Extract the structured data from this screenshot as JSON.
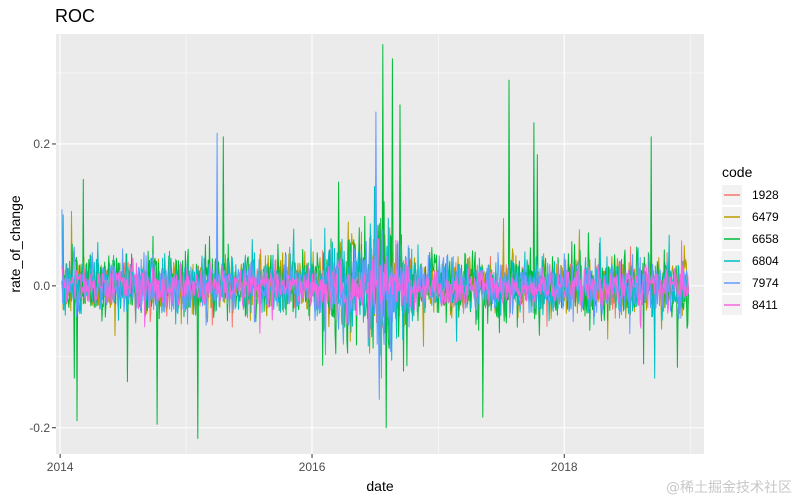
{
  "chart_data": {
    "type": "line",
    "title": "ROC",
    "xlabel": "date",
    "ylabel": "rate_of_change",
    "xlim": [
      "2013-12-20",
      "2019-02-10"
    ],
    "ylim": [
      -0.237,
      0.355
    ],
    "x_ticks": [
      {
        "value": "2014-01-01",
        "label": "2014"
      },
      {
        "value": "2016-01-01",
        "label": "2016"
      },
      {
        "value": "2018-01-01",
        "label": "2018"
      }
    ],
    "x_minor_ticks": [
      "2015-01-01",
      "2017-01-01",
      "2019-01-01"
    ],
    "y_ticks": [
      {
        "value": -0.2,
        "label": "-0.2"
      },
      {
        "value": 0.0,
        "label": "0.0"
      },
      {
        "value": 0.2,
        "label": "0.2"
      }
    ],
    "y_minor_ticks": [
      -0.1,
      0.1,
      0.3
    ],
    "grid": true,
    "legend": {
      "title": "code",
      "position": "right"
    },
    "series": [
      {
        "name": "1928",
        "color": "#F8766D",
        "x_range": [
          "2014-01-06",
          "2018-12-28"
        ],
        "points": [
          {
            "x": "2014-03-10",
            "y": 0.062
          },
          {
            "x": "2015-05-15",
            "y": -0.058
          },
          {
            "x": "2016-06-20",
            "y": 0.071
          },
          {
            "x": "2017-09-05",
            "y": -0.052
          },
          {
            "x": "2018-07-12",
            "y": 0.055
          }
        ]
      },
      {
        "name": "6479",
        "color": "#B79F00",
        "x_range": [
          "2014-01-06",
          "2018-12-28"
        ],
        "points": [
          {
            "x": "2014-02-03",
            "y": 0.105
          },
          {
            "x": "2014-06-10",
            "y": -0.07
          },
          {
            "x": "2016-04-15",
            "y": 0.09
          },
          {
            "x": "2016-11-20",
            "y": -0.085
          },
          {
            "x": "2017-07-10",
            "y": 0.095
          },
          {
            "x": "2018-05-08",
            "y": -0.075
          }
        ]
      },
      {
        "name": "6658",
        "color": "#00BA38",
        "x_range": [
          "2014-01-06",
          "2018-12-28"
        ],
        "points": [
          {
            "x": "2014-02-12",
            "y": -0.13
          },
          {
            "x": "2014-02-20",
            "y": -0.19
          },
          {
            "x": "2014-03-10",
            "y": 0.15
          },
          {
            "x": "2014-07-15",
            "y": -0.135
          },
          {
            "x": "2014-10-10",
            "y": -0.195
          },
          {
            "x": "2015-02-05",
            "y": -0.215
          },
          {
            "x": "2015-04-20",
            "y": 0.21
          },
          {
            "x": "2016-07-25",
            "y": 0.34
          },
          {
            "x": "2016-08-03",
            "y": -0.2
          },
          {
            "x": "2016-08-22",
            "y": 0.32
          },
          {
            "x": "2016-09-12",
            "y": 0.255
          },
          {
            "x": "2017-05-10",
            "y": -0.185
          },
          {
            "x": "2017-07-25",
            "y": 0.29
          },
          {
            "x": "2017-10-05",
            "y": 0.23
          },
          {
            "x": "2017-10-15",
            "y": 0.185
          },
          {
            "x": "2018-08-20",
            "y": -0.11
          },
          {
            "x": "2018-09-10",
            "y": 0.21
          },
          {
            "x": "2018-11-25",
            "y": -0.115
          }
        ]
      },
      {
        "name": "6804",
        "color": "#00BFC4",
        "x_range": [
          "2014-01-06",
          "2018-12-28"
        ],
        "points": [
          {
            "x": "2014-01-10",
            "y": 0.1
          },
          {
            "x": "2015-11-10",
            "y": 0.08
          },
          {
            "x": "2016-07-01",
            "y": 0.14
          },
          {
            "x": "2018-09-20",
            "y": -0.13
          }
        ]
      },
      {
        "name": "7974",
        "color": "#619CFF",
        "x_range": [
          "2014-01-06",
          "2018-12-28"
        ],
        "points": [
          {
            "x": "2014-01-05",
            "y": 0.108
          },
          {
            "x": "2015-04-01",
            "y": 0.215
          },
          {
            "x": "2016-07-05",
            "y": 0.245
          },
          {
            "x": "2016-07-15",
            "y": -0.16
          },
          {
            "x": "2016-07-20",
            "y": -0.13
          }
        ]
      },
      {
        "name": "8411",
        "color": "#F564E3",
        "x_range": [
          "2014-01-06",
          "2018-12-28"
        ],
        "points": [
          {
            "x": "2014-08-10",
            "y": 0.032
          },
          {
            "x": "2016-02-10",
            "y": -0.055
          },
          {
            "x": "2016-07-10",
            "y": 0.06
          },
          {
            "x": "2017-03-15",
            "y": -0.038
          },
          {
            "x": "2018-04-10",
            "y": 0.03
          }
        ]
      }
    ]
  },
  "watermark": "@稀土掘金技术社区"
}
